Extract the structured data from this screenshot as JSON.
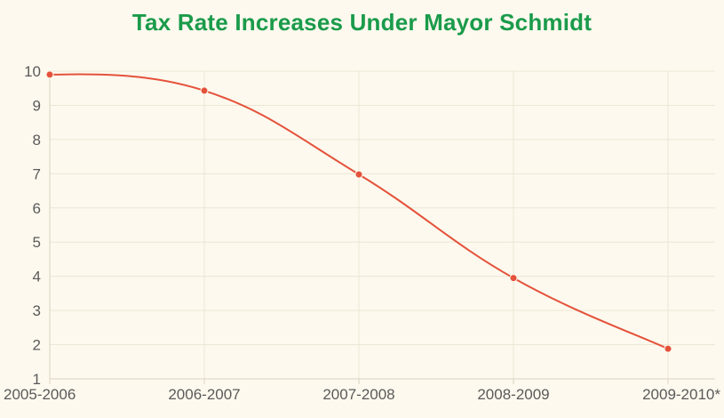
{
  "chart_data": {
    "type": "line",
    "title": "Tax Rate Increases Under Mayor Schmidt",
    "xlabel": "",
    "ylabel": "",
    "categories": [
      "2005-2006",
      "2006-2007",
      "2007-2008",
      "2008-2009",
      "2009-2010*"
    ],
    "series": [
      {
        "values": [
          9.9,
          9.43,
          6.98,
          3.95,
          1.88
        ]
      }
    ],
    "ylim": [
      1,
      10
    ],
    "yticks": [
      "1",
      "2",
      "3",
      "4",
      "5",
      "6",
      "7",
      "8",
      "9",
      "10"
    ],
    "grid": true,
    "smooth": true,
    "colors": {
      "line": "#e4523b",
      "title": "#1a9b4b",
      "grid": "#ece6d6",
      "axis": "#d9d2c0",
      "background": "#fdf9ee"
    }
  }
}
